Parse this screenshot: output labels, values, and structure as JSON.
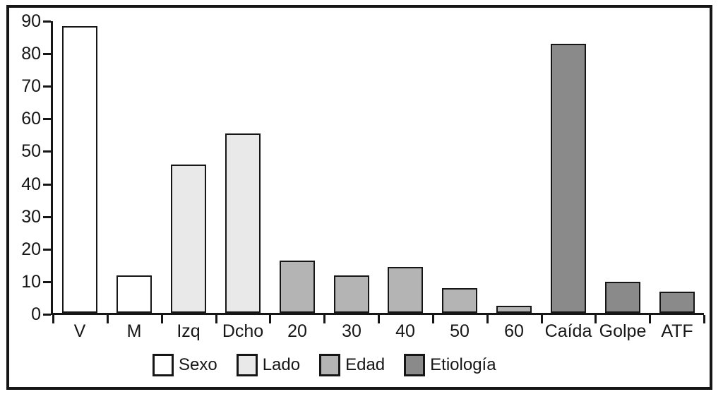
{
  "chart_data": {
    "type": "bar",
    "title": "",
    "xlabel": "",
    "ylabel": "",
    "categories": [
      "V",
      "M",
      "Izq",
      "Dcho",
      "20",
      "30",
      "40",
      "50",
      "60",
      "Caída",
      "Golpe",
      "ATF"
    ],
    "values": [
      88.5,
      12,
      46,
      55.5,
      16.5,
      12,
      14.5,
      8,
      2.5,
      83,
      10,
      7
    ],
    "groups": [
      {
        "name": "Sexo",
        "color": "#ffffff",
        "categories": [
          "V",
          "M"
        ]
      },
      {
        "name": "Lado",
        "color": "#e9e9e9",
        "categories": [
          "Izq",
          "Dcho"
        ]
      },
      {
        "name": "Edad",
        "color": "#b4b4b4",
        "categories": [
          "20",
          "30",
          "40",
          "50",
          "60"
        ]
      },
      {
        "name": "Etiología",
        "color": "#8a8a8a",
        "categories": [
          "Caída",
          "Golpe",
          "ATF"
        ]
      }
    ],
    "group_index": [
      0,
      0,
      1,
      1,
      2,
      2,
      2,
      2,
      2,
      3,
      3,
      3
    ],
    "y_ticks": [
      0,
      10,
      20,
      30,
      40,
      50,
      60,
      70,
      80,
      90
    ],
    "ylim": [
      0,
      90
    ],
    "grid": false,
    "legend_position": "bottom",
    "legend_entries": [
      "Sexo",
      "Lado",
      "Edad",
      "Etiología"
    ],
    "axis_color": "#161616",
    "background_color": "#ffffff"
  }
}
